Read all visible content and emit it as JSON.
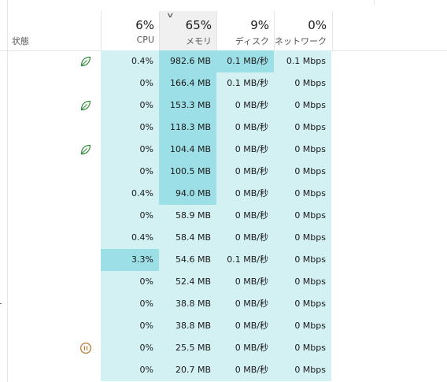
{
  "header": {
    "status_label": "状態",
    "cpu": {
      "pct": "6%",
      "label": "CPU"
    },
    "memory": {
      "pct": "65%",
      "label": "メモリ"
    },
    "disk": {
      "pct": "9%",
      "label": "ディスク"
    },
    "network": {
      "pct": "0%",
      "label": "ネットワーク"
    }
  },
  "colors": {
    "cell_bg": "#d3f0f3",
    "highlight": "#9ddfe6",
    "eco_icon": "#2e8b3a",
    "suspend_icon": "#b8752a"
  },
  "rows": [
    {
      "status": "leaf-icon",
      "cpu": "0.4%",
      "memory": "982.6 MB",
      "disk": "0.1 MB/秒",
      "network": "0.1 Mbps"
    },
    {
      "status": "",
      "cpu": "0%",
      "memory": "166.4 MB",
      "disk": "0.1 MB/秒",
      "network": "0 Mbps"
    },
    {
      "status": "leaf-icon",
      "cpu": "0%",
      "memory": "153.3 MB",
      "disk": "0 MB/秒",
      "network": "0 Mbps"
    },
    {
      "status": "",
      "cpu": "0%",
      "memory": "118.3 MB",
      "disk": "0 MB/秒",
      "network": "0 Mbps"
    },
    {
      "status": "leaf-icon",
      "cpu": "0%",
      "memory": "104.4 MB",
      "disk": "0 MB/秒",
      "network": "0 Mbps"
    },
    {
      "status": "",
      "cpu": "0%",
      "memory": "100.5 MB",
      "disk": "0 MB/秒",
      "network": "0 Mbps"
    },
    {
      "status": "",
      "cpu": "0.4%",
      "memory": "94.0 MB",
      "disk": "0 MB/秒",
      "network": "0 Mbps"
    },
    {
      "status": "",
      "cpu": "0%",
      "memory": "58.9 MB",
      "disk": "0 MB/秒",
      "network": "0 Mbps"
    },
    {
      "status": "",
      "cpu": "0.4%",
      "memory": "58.4 MB",
      "disk": "0 MB/秒",
      "network": "0 Mbps"
    },
    {
      "status": "",
      "cpu": "3.3%",
      "memory": "54.6 MB",
      "disk": "0.1 MB/秒",
      "network": "0 Mbps"
    },
    {
      "status": "",
      "cpu": "0%",
      "memory": "52.4 MB",
      "disk": "0 MB/秒",
      "network": "0 Mbps"
    },
    {
      "status": "",
      "cpu": "0%",
      "memory": "38.8 MB",
      "disk": "0 MB/秒",
      "network": "0 Mbps"
    },
    {
      "status": "",
      "cpu": "0%",
      "memory": "38.8 MB",
      "disk": "0 MB/秒",
      "network": "0 Mbps"
    },
    {
      "status": "pause-icon",
      "cpu": "0%",
      "memory": "25.5 MB",
      "disk": "0 MB/秒",
      "network": "0 Mbps"
    },
    {
      "status": "",
      "cpu": "0%",
      "memory": "20.7 MB",
      "disk": "0 MB/秒",
      "network": "0 Mbps"
    }
  ]
}
